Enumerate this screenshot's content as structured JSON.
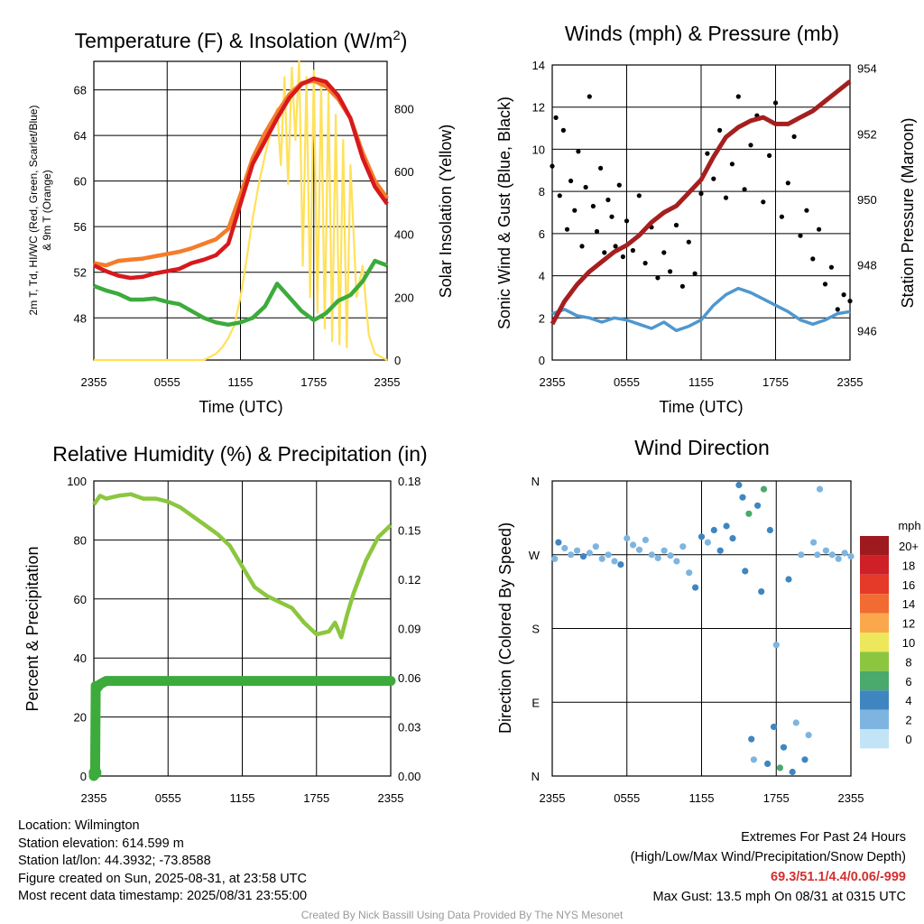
{
  "colors": {
    "temp_2m": "#d7191c",
    "dewpoint": "#3cab3c",
    "temp_9m": "#f47c2a",
    "insolation": "#ffe15a",
    "wind_speed": "#4f97cf",
    "gust": "#000000",
    "pressure": "#a51f1f",
    "humidity": "#8cc63f",
    "precipitation": "#3cab3c"
  },
  "chart_data": [
    {
      "type": "line",
      "title": "Temperature (F) & Insolation (W/m²)",
      "xlabel": "Time (UTC)",
      "x_ticks": [
        "2355",
        "0555",
        "1155",
        "1755",
        "2355"
      ],
      "ylabel_left": [
        "2m T, Td, HI/WC (Red, Green, Scarlet/Blue)",
        "& 9m T (Orange)"
      ],
      "ylabel_right": "Solar Insolation (Yellow)",
      "ylim_left": [
        44.3,
        70.5
      ],
      "ylim_right": [
        0,
        950
      ],
      "y_ticks_left": [
        48,
        52,
        56,
        60,
        64,
        68
      ],
      "y_ticks_right": [
        0,
        200,
        400,
        600,
        800
      ],
      "grid": true,
      "series": [
        {
          "name": "2m T",
          "axis": "left",
          "x_hours": [
            0,
            1,
            2,
            3,
            4,
            5,
            6,
            7,
            8,
            9,
            10,
            11,
            12,
            13,
            14,
            15,
            16,
            17,
            18,
            19,
            20,
            21,
            22,
            23,
            24
          ],
          "values": [
            52.6,
            52.1,
            51.7,
            51.5,
            51.6,
            51.9,
            52.1,
            52.3,
            52.8,
            53.1,
            53.5,
            54.5,
            58,
            61.5,
            63.5,
            65.5,
            67.3,
            68.5,
            69,
            68.7,
            67.5,
            65.5,
            62,
            59.5,
            58
          ]
        },
        {
          "name": "9m T",
          "axis": "left",
          "x_hours": [
            0,
            1,
            2,
            3,
            4,
            5,
            6,
            7,
            8,
            9,
            10,
            11,
            12,
            13,
            14,
            15,
            16,
            17,
            18,
            19,
            20,
            21,
            22,
            23,
            24
          ],
          "values": [
            52.8,
            52.6,
            53,
            53.1,
            53.2,
            53.4,
            53.6,
            53.8,
            54.1,
            54.5,
            54.9,
            55.8,
            58.8,
            62,
            64.2,
            66,
            67.6,
            68.6,
            68.8,
            68.3,
            67.2,
            65.5,
            62.5,
            60,
            58.5
          ]
        },
        {
          "name": "Td",
          "axis": "left",
          "x_hours": [
            0,
            1,
            2,
            3,
            4,
            5,
            6,
            7,
            8,
            9,
            10,
            11,
            12,
            13,
            14,
            15,
            16,
            17,
            18,
            19,
            20,
            21,
            22,
            23,
            24
          ],
          "values": [
            50.8,
            50.4,
            50.1,
            49.6,
            49.6,
            49.7,
            49.4,
            49.2,
            48.6,
            48,
            47.6,
            47.4,
            47.6,
            48,
            49,
            51,
            49.8,
            48.6,
            47.8,
            48.4,
            49.5,
            50,
            51.2,
            53,
            52.6
          ]
        },
        {
          "name": "Insolation",
          "axis": "right",
          "x_hours": [
            0,
            4,
            8,
            9,
            10,
            10.5,
            11,
            11.5,
            12,
            12.5,
            13,
            13.5,
            14,
            14.5,
            15,
            15.3,
            15.6,
            15.9,
            16.2,
            16.5,
            16.8,
            17.1,
            17.4,
            17.7,
            18,
            18.3,
            18.6,
            18.9,
            19.2,
            19.5,
            19.8,
            20.1,
            20.4,
            20.7,
            21,
            21.5,
            22,
            22.5,
            23,
            24
          ],
          "values": [
            0,
            0,
            0,
            0,
            20,
            40,
            70,
            110,
            200,
            320,
            450,
            560,
            650,
            730,
            800,
            620,
            900,
            560,
            930,
            700,
            950,
            300,
            900,
            200,
            920,
            150,
            880,
            100,
            850,
            60,
            780,
            50,
            700,
            40,
            620,
            200,
            300,
            80,
            20,
            0
          ]
        }
      ]
    },
    {
      "type": "line",
      "title": "Winds (mph) & Pressure (mb)",
      "xlabel": "Time (UTC)",
      "x_ticks": [
        "2355",
        "0555",
        "1155",
        "1755",
        "2355"
      ],
      "ylabel_left": "Sonic Wind & Gust (Blue, Black)",
      "ylabel_right": "Station Pressure (Maroon)",
      "ylim_left": [
        0,
        14
      ],
      "ylim_right": [
        945.1,
        954.1
      ],
      "y_ticks_left": [
        0,
        2,
        4,
        6,
        8,
        10,
        12,
        14
      ],
      "y_ticks_right": [
        946,
        948,
        950,
        952,
        954
      ],
      "grid": true,
      "series": [
        {
          "name": "Sonic Wind",
          "axis": "left",
          "x_hours": [
            0,
            1,
            2,
            3,
            4,
            5,
            6,
            7,
            8,
            9,
            10,
            11,
            12,
            13,
            14,
            15,
            16,
            17,
            18,
            19,
            20,
            21,
            22,
            23,
            24
          ],
          "values": [
            2.2,
            2.4,
            2.1,
            2,
            1.8,
            2,
            1.9,
            1.7,
            1.5,
            1.8,
            1.4,
            1.6,
            1.9,
            2.6,
            3.1,
            3.4,
            3.2,
            2.9,
            2.6,
            2.3,
            1.9,
            1.7,
            1.9,
            2.2,
            2.3
          ]
        },
        {
          "name": "Gust",
          "axis": "left",
          "x_hours": [
            0,
            0.3,
            0.6,
            0.9,
            1.2,
            1.5,
            1.8,
            2.1,
            2.4,
            2.7,
            3,
            3.3,
            3.6,
            3.9,
            4.2,
            4.5,
            4.8,
            5.1,
            5.4,
            5.7,
            6,
            6.5,
            7,
            7.5,
            8,
            8.5,
            9,
            9.5,
            10,
            10.5,
            11,
            11.5,
            12,
            12.5,
            13,
            13.5,
            14,
            14.5,
            15,
            15.5,
            16,
            16.5,
            17,
            17.5,
            18,
            18.5,
            19,
            19.5,
            20,
            20.5,
            21,
            21.5,
            22,
            22.5,
            23,
            23.5,
            24
          ],
          "values": [
            9.2,
            11.5,
            7.8,
            10.9,
            6.2,
            8.5,
            7.1,
            9.9,
            5.4,
            8.2,
            12.5,
            7.3,
            6.1,
            9.1,
            5.1,
            7.6,
            6.8,
            5.4,
            8.3,
            4.9,
            6.6,
            5.2,
            7.8,
            4.6,
            6.3,
            3.9,
            5.1,
            4.2,
            6.4,
            3.5,
            5.6,
            4.1,
            7.9,
            9.8,
            8.6,
            10.9,
            7.7,
            9.3,
            12.5,
            8.1,
            10.2,
            11.6,
            7.5,
            9.7,
            12.2,
            6.8,
            8.4,
            10.6,
            5.9,
            7.1,
            4.8,
            6.2,
            3.6,
            4.4,
            2.4,
            3.1,
            2.8
          ]
        },
        {
          "name": "Station Pressure",
          "axis": "right",
          "x_hours": [
            0,
            1,
            2,
            3,
            4,
            5,
            6,
            7,
            8,
            9,
            10,
            11,
            12,
            13,
            14,
            15,
            16,
            17,
            18,
            19,
            20,
            21,
            22,
            23,
            24
          ],
          "values": [
            946.2,
            946.9,
            947.4,
            947.8,
            948.1,
            948.4,
            948.6,
            948.9,
            949.3,
            949.6,
            949.8,
            950.2,
            950.6,
            951.3,
            951.9,
            952.2,
            952.4,
            952.5,
            952.3,
            952.3,
            952.5,
            952.7,
            953,
            953.3,
            953.6
          ]
        }
      ]
    },
    {
      "type": "line",
      "title": "Relative Humidity (%) & Precipitation (in)",
      "xlabel": "",
      "x_ticks": [
        "2355",
        "0555",
        "1155",
        "1755",
        "2355"
      ],
      "ylabel_left": "Percent & Precipitation",
      "ylim_left": [
        0,
        100
      ],
      "ylim_right": [
        0,
        0.18
      ],
      "y_ticks_left": [
        0,
        20,
        40,
        60,
        80,
        100
      ],
      "y_ticks_right": [
        "0.00",
        "0.03",
        "0.06",
        "0.09",
        "0.12",
        "0.15",
        "0.18"
      ],
      "grid": true,
      "series": [
        {
          "name": "Relative Humidity",
          "axis": "left",
          "x_hours": [
            0,
            0.5,
            1,
            2,
            3,
            4,
            5,
            6,
            7,
            8,
            9,
            10,
            11,
            12,
            13,
            14,
            15,
            16,
            17,
            18,
            19,
            19.5,
            20,
            20.5,
            21,
            22,
            23,
            24
          ],
          "values": [
            92,
            95,
            94,
            95,
            95.5,
            94,
            94,
            93,
            91,
            88,
            85,
            82,
            78,
            71,
            64,
            61,
            59,
            57,
            52,
            48,
            49,
            52,
            47,
            55,
            62,
            73,
            81,
            85
          ]
        },
        {
          "name": "Precipitation",
          "axis": "right",
          "x_hours": [
            0,
            0.1,
            0.15,
            0.3,
            0.5,
            1,
            24
          ],
          "values": [
            0,
            0.002,
            0.055,
            0.054,
            0.056,
            0.058,
            0.058
          ]
        }
      ]
    },
    {
      "type": "scatter",
      "title": "Wind Direction",
      "x_ticks": [
        "2355",
        "0555",
        "1155",
        "1755",
        "2355"
      ],
      "ylabel": "Direction (Colored By Speed)",
      "y_ticks": [
        "N",
        "W",
        "S",
        "E",
        "N"
      ],
      "ylim": [
        0,
        360
      ],
      "grid": true,
      "legend": {
        "title": "mph",
        "labels": [
          "20+",
          "18",
          "16",
          "14",
          "12",
          "10",
          "8",
          "6",
          "4",
          "2",
          "0"
        ],
        "colors": [
          "#9e1a1e",
          "#cf2027",
          "#e53a2a",
          "#f16b32",
          "#fba84d",
          "#ece75b",
          "#8cc63f",
          "#4aa96c",
          "#3f86c1",
          "#7eb5e0",
          "#c2e4f6"
        ]
      },
      "points": [
        {
          "x_hours": 0.2,
          "direction": 265,
          "speed": 2
        },
        {
          "x_hours": 0.5,
          "direction": 285,
          "speed": 3
        },
        {
          "x_hours": 1,
          "direction": 278,
          "speed": 2
        },
        {
          "x_hours": 1.5,
          "direction": 270,
          "speed": 1
        },
        {
          "x_hours": 2,
          "direction": 275,
          "speed": 2
        },
        {
          "x_hours": 2.5,
          "direction": 268,
          "speed": 3
        },
        {
          "x_hours": 3,
          "direction": 272,
          "speed": 2
        },
        {
          "x_hours": 3.5,
          "direction": 280,
          "speed": 2
        },
        {
          "x_hours": 4,
          "direction": 265,
          "speed": 1
        },
        {
          "x_hours": 4.5,
          "direction": 270,
          "speed": 2
        },
        {
          "x_hours": 5,
          "direction": 262,
          "speed": 2
        },
        {
          "x_hours": 5.5,
          "direction": 258,
          "speed": 3
        },
        {
          "x_hours": 6,
          "direction": 290,
          "speed": 1
        },
        {
          "x_hours": 6.5,
          "direction": 282,
          "speed": 1
        },
        {
          "x_hours": 7,
          "direction": 276,
          "speed": 2
        },
        {
          "x_hours": 7.5,
          "direction": 288,
          "speed": 1
        },
        {
          "x_hours": 8,
          "direction": 270,
          "speed": 2
        },
        {
          "x_hours": 8.5,
          "direction": 266,
          "speed": 1
        },
        {
          "x_hours": 9,
          "direction": 275,
          "speed": 2
        },
        {
          "x_hours": 9.5,
          "direction": 269,
          "speed": 1
        },
        {
          "x_hours": 10,
          "direction": 262,
          "speed": 2
        },
        {
          "x_hours": 10.5,
          "direction": 280,
          "speed": 2
        },
        {
          "x_hours": 11,
          "direction": 248,
          "speed": 2
        },
        {
          "x_hours": 11.5,
          "direction": 230,
          "speed": 3
        },
        {
          "x_hours": 12,
          "direction": 292,
          "speed": 3
        },
        {
          "x_hours": 12.5,
          "direction": 285,
          "speed": 2
        },
        {
          "x_hours": 13,
          "direction": 300,
          "speed": 3
        },
        {
          "x_hours": 13.5,
          "direction": 275,
          "speed": 4
        },
        {
          "x_hours": 14,
          "direction": 305,
          "speed": 3
        },
        {
          "x_hours": 14.5,
          "direction": 290,
          "speed": 4
        },
        {
          "x_hours": 15,
          "direction": 355,
          "speed": 4
        },
        {
          "x_hours": 15.3,
          "direction": 340,
          "speed": 4
        },
        {
          "x_hours": 15.5,
          "direction": 250,
          "speed": 3
        },
        {
          "x_hours": 15.8,
          "direction": 320,
          "speed": 5
        },
        {
          "x_hours": 16,
          "direction": 45,
          "speed": 3
        },
        {
          "x_hours": 16.2,
          "direction": 20,
          "speed": 2
        },
        {
          "x_hours": 16.5,
          "direction": 330,
          "speed": 4
        },
        {
          "x_hours": 16.8,
          "direction": 225,
          "speed": 3
        },
        {
          "x_hours": 17,
          "direction": 350,
          "speed": 5
        },
        {
          "x_hours": 17.3,
          "direction": 15,
          "speed": 4
        },
        {
          "x_hours": 17.5,
          "direction": 300,
          "speed": 3
        },
        {
          "x_hours": 17.8,
          "direction": 60,
          "speed": 3
        },
        {
          "x_hours": 18,
          "direction": 160,
          "speed": 2
        },
        {
          "x_hours": 18.3,
          "direction": 10,
          "speed": 5
        },
        {
          "x_hours": 18.6,
          "direction": 35,
          "speed": 3
        },
        {
          "x_hours": 19,
          "direction": 240,
          "speed": 3
        },
        {
          "x_hours": 19.3,
          "direction": 5,
          "speed": 4
        },
        {
          "x_hours": 19.6,
          "direction": 65,
          "speed": 2
        },
        {
          "x_hours": 20,
          "direction": 270,
          "speed": 1
        },
        {
          "x_hours": 20.3,
          "direction": 20,
          "speed": 3
        },
        {
          "x_hours": 20.6,
          "direction": 50,
          "speed": 2
        },
        {
          "x_hours": 21,
          "direction": 285,
          "speed": 2
        },
        {
          "x_hours": 21.3,
          "direction": 270,
          "speed": 1
        },
        {
          "x_hours": 21.5,
          "direction": 350,
          "speed": 1
        },
        {
          "x_hours": 22,
          "direction": 275,
          "speed": 2
        },
        {
          "x_hours": 22.5,
          "direction": 270,
          "speed": 2
        },
        {
          "x_hours": 23,
          "direction": 265,
          "speed": 2
        },
        {
          "x_hours": 23.5,
          "direction": 272,
          "speed": 2
        },
        {
          "x_hours": 24,
          "direction": 268,
          "speed": 2
        }
      ]
    }
  ],
  "footer": {
    "location": "Location: Wilmington",
    "elevation": "Station elevation: 614.599 m",
    "latlon": "Station lat/lon: 44.3932; -73.8588",
    "created": "Figure created on Sun, 2025-08-31, at 23:58 UTC",
    "recent": "Most recent data timestamp: 2025/08/31 23:55:00",
    "extremes_title": "Extremes For Past 24 Hours",
    "extremes_fields": "(High/Low/Max Wind/Precipitation/Snow Depth)",
    "extremes_values": "69.3/51.1/4.4/0.06/-999",
    "max_gust": "Max Gust: 13.5 mph On 08/31 at 0315 UTC",
    "credit": "Created By Nick Bassill Using Data Provided By The NYS Mesonet"
  }
}
